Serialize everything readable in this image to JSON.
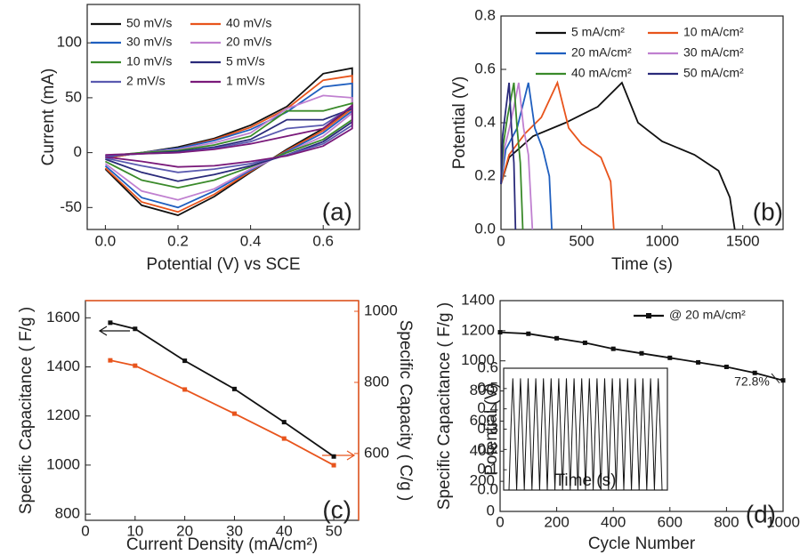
{
  "chart_data": [
    {
      "type": "line",
      "panel_label": "(a)",
      "y_label": "Current (mA)",
      "x_label": "Potential (V) vs SCE",
      "xlim": [
        -0.05,
        0.7
      ],
      "xticks": [
        {
          "value": 0,
          "label": "0.0"
        },
        0.2,
        0.4,
        0.6
      ],
      "ylim": [
        -70,
        135
      ],
      "yticks": [
        -50,
        0,
        50,
        100
      ],
      "series": [
        {
          "name": "50 mV/s",
          "color": "#111111",
          "x": [
            0,
            0.1,
            0.2,
            0.3,
            0.4,
            0.5,
            0.6,
            0.68,
            0.68,
            0.6,
            0.5,
            0.4,
            0.3,
            0.2,
            0.1,
            0
          ],
          "values": [
            -5,
            0,
            5,
            13,
            25,
            42,
            72,
            77,
            42,
            22,
            3,
            -18,
            -40,
            -57,
            -48,
            -15
          ]
        },
        {
          "name": "40 mV/s",
          "color": "#e8541c",
          "x": [
            0,
            0.1,
            0.2,
            0.3,
            0.4,
            0.5,
            0.6,
            0.68,
            0.68,
            0.6,
            0.5,
            0.4,
            0.3,
            0.2,
            0.1,
            0
          ],
          "values": [
            -5,
            0,
            4,
            12,
            23,
            40,
            66,
            70,
            40,
            20,
            2,
            -17,
            -38,
            -54,
            -45,
            -14
          ]
        },
        {
          "name": "30 mV/s",
          "color": "#1f5fbf",
          "x": [
            0,
            0.1,
            0.2,
            0.3,
            0.4,
            0.5,
            0.6,
            0.68,
            0.68,
            0.6,
            0.5,
            0.4,
            0.3,
            0.2,
            0.1,
            0
          ],
          "values": [
            -4,
            0,
            4,
            11,
            21,
            37,
            60,
            63,
            38,
            18,
            1,
            -16,
            -35,
            -50,
            -41,
            -12
          ]
        },
        {
          "name": "20 mV/s",
          "color": "#c080d0",
          "x": [
            0,
            0.1,
            0.2,
            0.3,
            0.4,
            0.5,
            0.6,
            0.68,
            0.68,
            0.6,
            0.5,
            0.4,
            0.3,
            0.2,
            0.1,
            0
          ],
          "values": [
            -3,
            0,
            3,
            9,
            18,
            40,
            52,
            50,
            36,
            15,
            0,
            -15,
            -33,
            -43,
            -35,
            -10
          ]
        },
        {
          "name": "10 mV/s",
          "color": "#3a8a2a",
          "x": [
            0,
            0.1,
            0.2,
            0.3,
            0.4,
            0.5,
            0.6,
            0.68,
            0.68,
            0.6,
            0.5,
            0.4,
            0.3,
            0.2,
            0.1,
            0
          ],
          "values": [
            -3,
            0,
            2,
            7,
            15,
            38,
            38,
            45,
            30,
            12,
            0,
            -13,
            -25,
            -32,
            -25,
            -8
          ]
        },
        {
          "name": "5 mV/s",
          "color": "#2a2a7a",
          "x": [
            0,
            0.1,
            0.2,
            0.3,
            0.4,
            0.5,
            0.6,
            0.68,
            0.68,
            0.6,
            0.5,
            0.4,
            0.3,
            0.2,
            0.1,
            0
          ],
          "values": [
            -3,
            -1,
            1,
            5,
            12,
            30,
            30,
            40,
            28,
            10,
            -2,
            -12,
            -20,
            -26,
            -18,
            -6
          ]
        },
        {
          "name": "2 mV/s",
          "color": "#5a5ab0",
          "x": [
            0,
            0.1,
            0.2,
            0.3,
            0.4,
            0.5,
            0.6,
            0.68,
            0.68,
            0.6,
            0.5,
            0.4,
            0.3,
            0.2,
            0.1,
            0
          ],
          "values": [
            -3,
            -1,
            0,
            4,
            10,
            22,
            25,
            42,
            25,
            8,
            -2,
            -10,
            -15,
            -18,
            -12,
            -5
          ]
        },
        {
          "name": "1 mV/s",
          "color": "#7a1a7a",
          "x": [
            0,
            0.1,
            0.2,
            0.3,
            0.4,
            0.5,
            0.6,
            0.68,
            0.68,
            0.6,
            0.5,
            0.4,
            0.3,
            0.2,
            0.1,
            0
          ],
          "values": [
            -2,
            -1,
            0,
            3,
            8,
            15,
            22,
            43,
            22,
            6,
            -3,
            -8,
            -12,
            -13,
            -8,
            -4
          ]
        }
      ]
    },
    {
      "type": "line",
      "panel_label": "(b)",
      "y_label": "Potential (V)",
      "x_label": "Time (s)",
      "xlim": [
        0,
        1750
      ],
      "xticks": [
        0,
        500,
        1000,
        1500
      ],
      "ylim": [
        0,
        0.8
      ],
      "yticks": [
        {
          "value": 0,
          "label": "0.0"
        },
        0.2,
        0.4,
        0.6,
        0.8
      ],
      "series": [
        {
          "name": "5 mA/cm²",
          "color": "#111111",
          "x": [
            0,
            50,
            200,
            400,
            600,
            750,
            850,
            1000,
            1200,
            1350,
            1420,
            1450
          ],
          "values": [
            0.17,
            0.27,
            0.35,
            0.4,
            0.46,
            0.55,
            0.4,
            0.33,
            0.28,
            0.22,
            0.12,
            0
          ]
        },
        {
          "name": "10 mA/cm²",
          "color": "#e8541c",
          "x": [
            0,
            50,
            150,
            250,
            350,
            420,
            500,
            620,
            680,
            700
          ],
          "values": [
            0.17,
            0.28,
            0.36,
            0.42,
            0.55,
            0.38,
            0.32,
            0.27,
            0.18,
            0
          ]
        },
        {
          "name": "20 mA/cm²",
          "color": "#1f5fbf",
          "x": [
            0,
            30,
            100,
            170,
            210,
            260,
            300,
            315
          ],
          "values": [
            0.17,
            0.3,
            0.38,
            0.55,
            0.38,
            0.3,
            0.2,
            0
          ]
        },
        {
          "name": "30 mA/cm²",
          "color": "#c080d0",
          "x": [
            0,
            20,
            60,
            110,
            140,
            170,
            195
          ],
          "values": [
            0.17,
            0.3,
            0.4,
            0.55,
            0.38,
            0.28,
            0
          ]
        },
        {
          "name": "40 mA/cm²",
          "color": "#3a8a2a",
          "x": [
            0,
            15,
            40,
            80,
            100,
            120,
            135
          ],
          "values": [
            0.17,
            0.32,
            0.42,
            0.55,
            0.38,
            0.25,
            0
          ]
        },
        {
          "name": "50 mA/cm²",
          "color": "#2a2a7a",
          "x": [
            0,
            10,
            30,
            50,
            65,
            80,
            90
          ],
          "values": [
            0.17,
            0.35,
            0.45,
            0.55,
            0.38,
            0.25,
            0
          ]
        }
      ]
    },
    {
      "type": "line",
      "panel_label": "(c)",
      "y_label": "Specific Capacitance ( F/g )",
      "y2_label": "Specific Capacity ( C/g )",
      "x_label": "Current Density (mA/cm²)",
      "markers": "square",
      "xlim": [
        0,
        55
      ],
      "xticks": [
        0,
        10,
        20,
        30,
        40,
        50
      ],
      "ylim": [
        775,
        1670
      ],
      "yticks": [
        800,
        1000,
        1200,
        1400,
        1600
      ],
      "y2lim": [
        412,
        1030
      ],
      "y2ticks": [
        600,
        800,
        1000
      ],
      "y2_color": "#e8541c",
      "x": [
        5,
        10,
        20,
        30,
        40,
        50
      ],
      "series": [
        {
          "color": "#111111",
          "values": [
            1580,
            1555,
            1425,
            1310,
            1175,
            1035
          ]
        },
        {
          "color": "#e8541c",
          "axis": "y2",
          "values": [
            862,
            847,
            780,
            712,
            642,
            567
          ]
        }
      ]
    },
    {
      "type": "line",
      "panel_label": "(d)",
      "y_label": "Specific Capacitance ( F/g )",
      "x_label": "Cycle Number",
      "annotation": "72.8%",
      "markers": "square",
      "xlim": [
        0,
        1000
      ],
      "xticks": [
        0,
        200,
        400,
        600,
        800,
        1000
      ],
      "ylim": [
        0,
        1400
      ],
      "yticks": [
        0,
        200,
        400,
        600,
        800,
        1000,
        1200,
        1400
      ],
      "x": [
        0,
        100,
        200,
        300,
        400,
        500,
        600,
        700,
        800,
        900,
        1000
      ],
      "series": [
        {
          "name": "@ 20 mA/cm²",
          "color": "#111111",
          "values": [
            1190,
            1180,
            1150,
            1120,
            1080,
            1050,
            1020,
            990,
            960,
            920,
            870
          ]
        }
      ]
    },
    {
      "type": "line",
      "y_label": "Potential (V)",
      "x_label": "Time (s)",
      "ylim": [
        0,
        0.6
      ],
      "yticks": [
        {
          "value": 0,
          "label": "0.0"
        },
        0.1,
        0.2,
        0.3,
        0.4,
        0.5,
        0.6
      ],
      "series": [
        {
          "color": "#111111",
          "values": [
            0,
            0.3,
            0.55,
            0.3,
            0,
            0.3,
            0.55,
            0.3,
            0,
            0.3,
            0.55,
            0.3,
            0,
            0.3,
            0.55,
            0.3,
            0,
            0.3,
            0.55,
            0.3,
            0,
            0.3,
            0.55,
            0.3,
            0,
            0.3,
            0.55,
            0.3,
            0,
            0.3,
            0.55,
            0.3,
            0,
            0.3,
            0.55,
            0.3,
            0,
            0.3,
            0.55,
            0.3,
            0,
            0.3,
            0.55,
            0.3,
            0,
            0.3,
            0.55,
            0.3,
            0,
            0.3,
            0.55,
            0.3,
            0,
            0.3,
            0.55,
            0.3,
            0,
            0.3,
            0.55,
            0.3,
            0,
            0.3,
            0.55,
            0.3,
            0,
            0.3,
            0.55,
            0.3,
            0,
            0.3,
            0.55,
            0.3,
            0,
            0.3,
            0.55,
            0.3,
            0,
            0.3,
            0.55,
            0.3,
            0
          ]
        }
      ]
    }
  ]
}
